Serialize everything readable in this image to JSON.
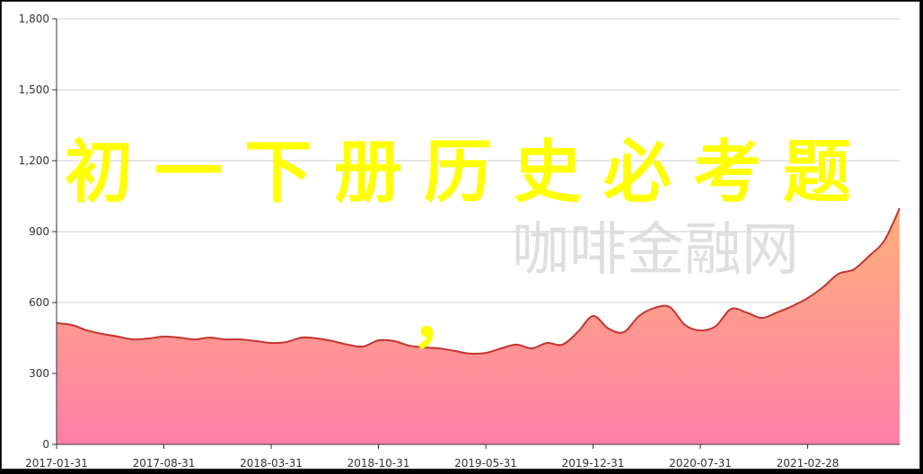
{
  "overlay": {
    "title": "初一下册历史必考题",
    "comma": "，"
  },
  "watermark": "咖啡金融网",
  "chart_data": {
    "type": "area",
    "title": "",
    "xlabel": "",
    "ylabel": "",
    "ylim": [
      0,
      1800
    ],
    "yticks": [
      "0",
      "300",
      "600",
      "900",
      "1,200",
      "1,500",
      "1,800"
    ],
    "ytick_values": [
      0,
      300,
      600,
      900,
      1200,
      1500,
      1800
    ],
    "xticks": [
      "2017-01-31",
      "2017-08-31",
      "2018-03-31",
      "2018-10-31",
      "2019-05-31",
      "2019-12-31",
      "2020-07-31",
      "2021-02-28"
    ],
    "x_start": "2017-01-31",
    "x_end": "2021-07-31",
    "x_interval": "monthly",
    "grid": true,
    "colors": {
      "line": "#c23531",
      "fill_top": "#ffb07a",
      "fill_bottom": "#ff7fa8",
      "grid": "#cccccc"
    },
    "values": [
      513,
      505,
      482,
      467,
      456,
      444,
      448,
      456,
      452,
      444,
      452,
      444,
      444,
      437,
      429,
      433,
      452,
      448,
      437,
      422,
      414,
      440,
      437,
      418,
      410,
      406,
      395,
      384,
      387,
      406,
      422,
      406,
      429,
      422,
      475,
      543,
      490,
      475,
      543,
      577,
      581,
      505,
      482,
      500,
      573,
      558,
      535,
      558,
      585,
      619,
      665,
      721,
      740,
      797,
      862,
      999
    ]
  }
}
